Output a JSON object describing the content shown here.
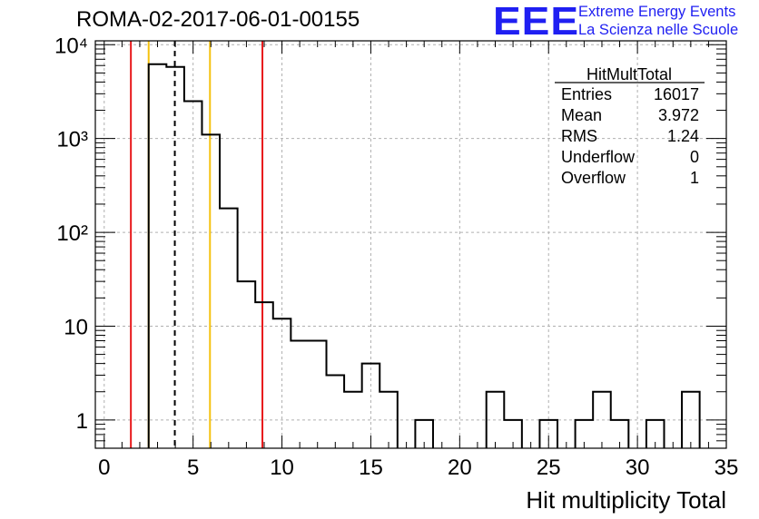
{
  "chart_data": {
    "type": "bar",
    "title": "ROMA-02-2017-06-01-00155",
    "xlabel": "Hit multiplicity Total",
    "ylabel": "",
    "xlim": [
      -0.5,
      35
    ],
    "ylim": [
      0.5,
      11000
    ],
    "y_scale": "log",
    "grid": true,
    "x_ticks": [
      "0",
      "5",
      "10",
      "15",
      "20",
      "25",
      "30",
      "35"
    ],
    "y_ticks": [
      "1",
      "10",
      "10²",
      "10³",
      "10⁴"
    ],
    "bin_width": 1,
    "bins": [
      {
        "low": 2.5,
        "value": 6200
      },
      {
        "low": 3.5,
        "value": 5800
      },
      {
        "low": 4.5,
        "value": 2500
      },
      {
        "low": 5.5,
        "value": 1100
      },
      {
        "low": 6.5,
        "value": 180
      },
      {
        "low": 7.5,
        "value": 30
      },
      {
        "low": 8.5,
        "value": 18
      },
      {
        "low": 9.5,
        "value": 12
      },
      {
        "low": 10.5,
        "value": 7
      },
      {
        "low": 11.5,
        "value": 7
      },
      {
        "low": 12.5,
        "value": 3
      },
      {
        "low": 13.5,
        "value": 2
      },
      {
        "low": 14.5,
        "value": 4
      },
      {
        "low": 15.5,
        "value": 2
      },
      {
        "low": 17.5,
        "value": 1
      },
      {
        "low": 21.5,
        "value": 2
      },
      {
        "low": 22.5,
        "value": 1
      },
      {
        "low": 24.5,
        "value": 1
      },
      {
        "low": 26.5,
        "value": 1
      },
      {
        "low": 27.5,
        "value": 2
      },
      {
        "low": 28.5,
        "value": 1
      },
      {
        "low": 30.5,
        "value": 1
      },
      {
        "low": 32.5,
        "value": 2
      }
    ],
    "vertical_lines": [
      {
        "x": 1.5,
        "color": "#e8191b",
        "style": "solid"
      },
      {
        "x": 2.5,
        "color": "#f5c20f",
        "style": "solid"
      },
      {
        "x": 3.972,
        "color": "#000000",
        "style": "dashed"
      },
      {
        "x": 5.95,
        "color": "#f5c20f",
        "style": "solid"
      },
      {
        "x": 8.9,
        "color": "#e8191b",
        "style": "solid"
      }
    ],
    "stats_box": {
      "name": "HitMultTotal",
      "rows": [
        {
          "label": "Entries",
          "value": "16017"
        },
        {
          "label": "Mean",
          "value": "3.972"
        },
        {
          "label": "RMS",
          "value": "1.24"
        },
        {
          "label": "Underflow",
          "value": "0"
        },
        {
          "label": "Overflow",
          "value": "1"
        }
      ]
    }
  },
  "logo": {
    "mark": "EEE",
    "line1": "Extreme Energy Events",
    "line2": "La Scienza nelle Scuole",
    "color": "#1f1ff2"
  }
}
